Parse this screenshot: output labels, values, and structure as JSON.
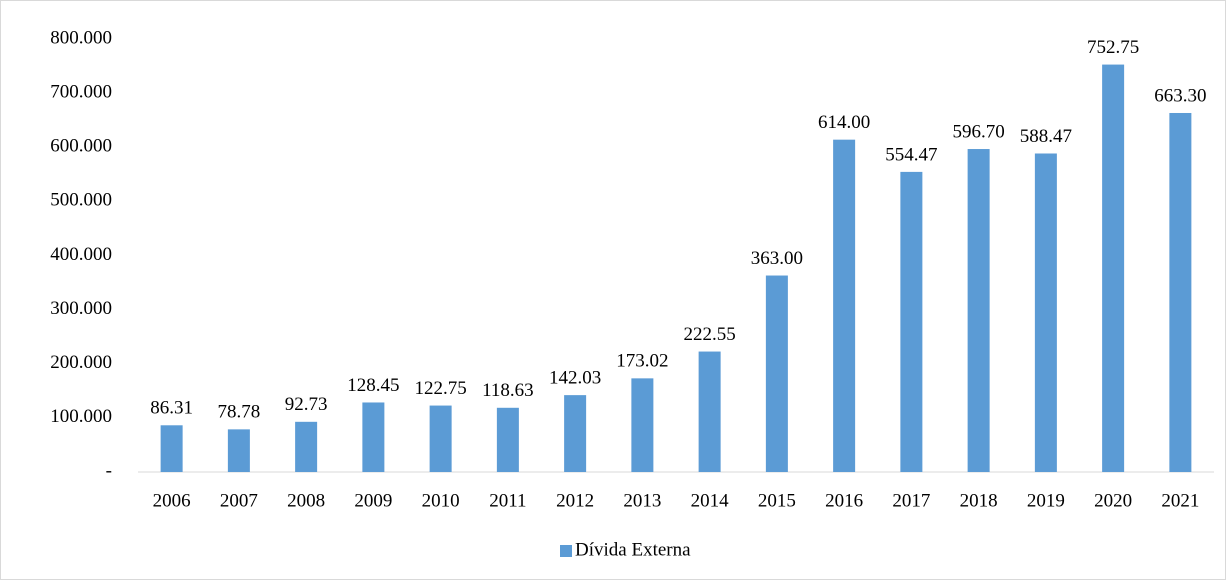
{
  "chart_data": {
    "type": "bar",
    "categories": [
      "2006",
      "2007",
      "2008",
      "2009",
      "2010",
      "2011",
      "2012",
      "2013",
      "2014",
      "2015",
      "2016",
      "2017",
      "2018",
      "2019",
      "2020",
      "2021"
    ],
    "series": [
      {
        "name": "Dívida Externa",
        "color": "#5b9bd5",
        "values": [
          86.31,
          78.78,
          92.73,
          128.45,
          122.75,
          118.63,
          142.03,
          173.02,
          222.55,
          363,
          614,
          554.47,
          596.7,
          588.47,
          752.75,
          663.3
        ],
        "value_labels": [
          "86.31",
          "78.78",
          "92.73",
          "128.45",
          "122.75",
          "118.63",
          "142.03",
          "173.02",
          "222.55",
          "363.00",
          "614.00",
          "554.47",
          "596.70",
          "588.47",
          "752.75",
          "663.30"
        ]
      }
    ],
    "ylim": [
      0,
      800
    ],
    "yticks": [
      {
        "value": 0,
        "label": "-"
      },
      {
        "value": 100,
        "label": "100.000"
      },
      {
        "value": 200,
        "label": "200.000"
      },
      {
        "value": 300,
        "label": "300.000"
      },
      {
        "value": 400,
        "label": "400.000"
      },
      {
        "value": 500,
        "label": "500.000"
      },
      {
        "value": 600,
        "label": "600.000"
      },
      {
        "value": 700,
        "label": "700.000"
      },
      {
        "value": 800,
        "label": "800.000"
      }
    ],
    "grid": false,
    "legend": "bottom"
  }
}
